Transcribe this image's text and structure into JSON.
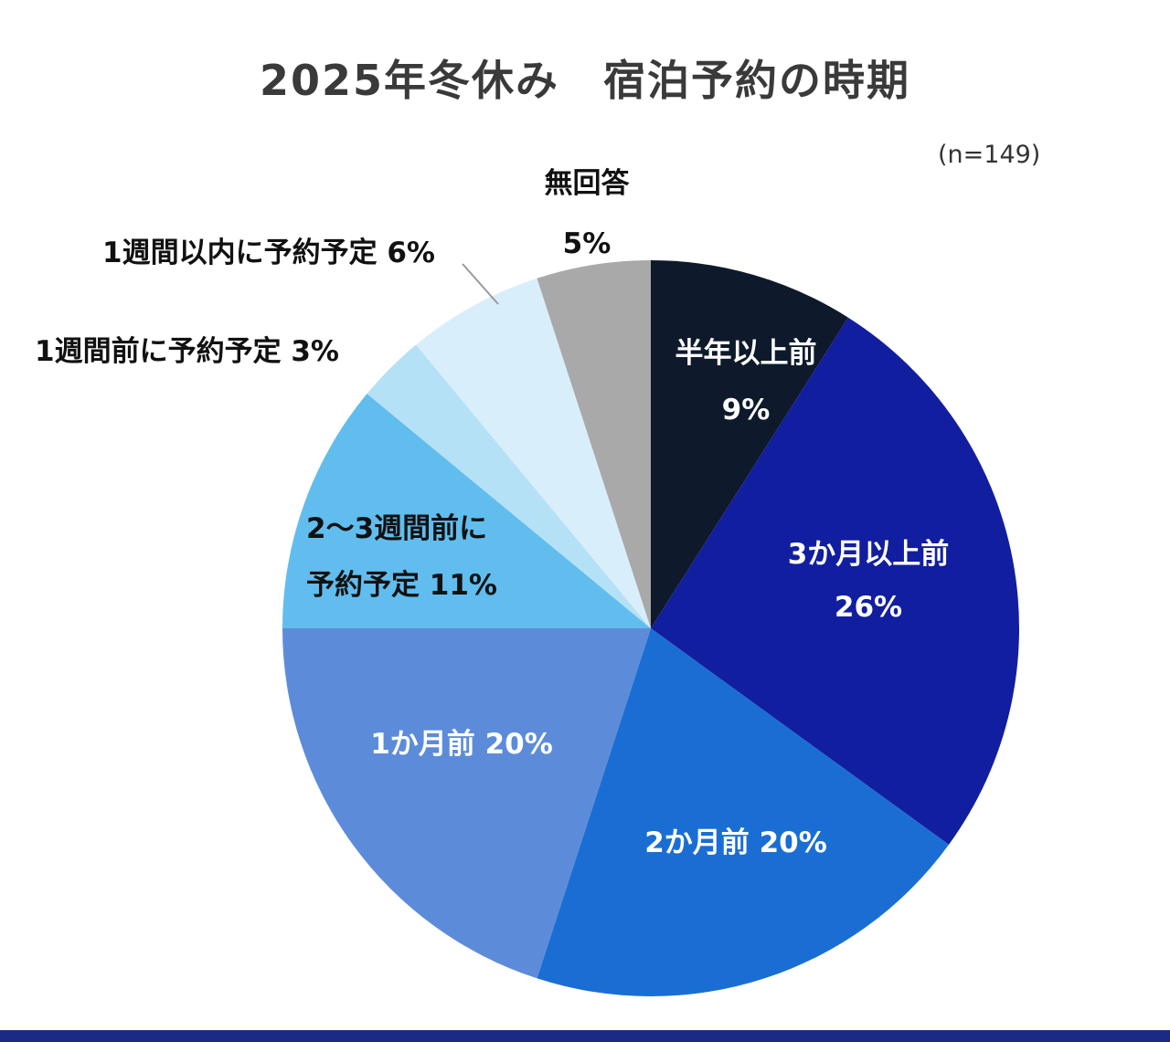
{
  "title": "2025年冬休み　宿泊予約の時期",
  "sample_size": "(n=149)",
  "chart_data": {
    "type": "pie",
    "title": "2025年冬休み　宿泊予約の時期",
    "n": 149,
    "start_angle_deg": 0,
    "direction": "clockwise",
    "unit": "%",
    "segments": [
      {
        "label": "半年以上前",
        "value": 9,
        "color": "#0e1a2b"
      },
      {
        "label": "3か月以上前",
        "value": 26,
        "color": "#111e9f"
      },
      {
        "label": "2か月前",
        "value": 20,
        "color": "#1a6ed3"
      },
      {
        "label": "1か月前",
        "value": 20,
        "color": "#5c8cd9"
      },
      {
        "label": "2〜3週間前に予約予定",
        "value": 11,
        "color": "#60bdee"
      },
      {
        "label": "1週間前に予約予定",
        "value": 3,
        "color": "#b5e1f6"
      },
      {
        "label": "1週間以内に予約予定",
        "value": 6,
        "color": "#d9eefb"
      },
      {
        "label": "無回答",
        "value": 5,
        "color": "#a9a9a9"
      }
    ]
  },
  "labels": {
    "inside": {
      "half_year_line1": "半年以上前",
      "half_year_line2": "9%",
      "three_months_line1": "3か月以上前",
      "three_months_line2": "26%",
      "two_months": "2か月前 20%",
      "one_month": "1か月前 20%"
    },
    "outside": {
      "two_three_weeks_line1": "2〜3週間前に",
      "two_three_weeks_line2": "予約予定 11%",
      "one_week_before": "1週間前に予約予定 3%",
      "within_one_week": "1週間以内に予約予定 6%",
      "no_answer_line1": "無回答",
      "no_answer_line2": "5%"
    }
  }
}
